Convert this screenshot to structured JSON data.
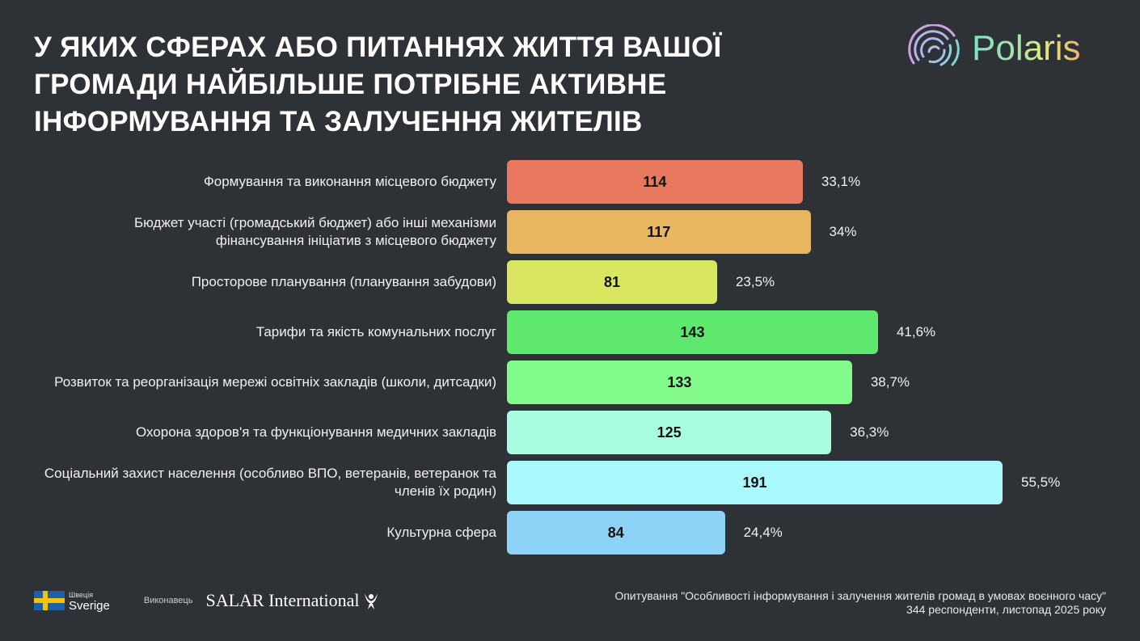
{
  "chart_data": {
    "type": "bar",
    "orientation": "horizontal",
    "title": "У ЯКИХ СФЕРАХ АБО ПИТАННЯХ ЖИТТЯ ВАШОЇ ГРОМАДИ НАЙБІЛЬШЕ ПОТРІБНЕ АКТИВНЕ ІНФОРМУВАННЯ ТА ЗАЛУЧЕННЯ ЖИТЕЛІВ",
    "categories": [
      "Формування та виконання місцевого бюджету",
      "Бюджет участі (громадський бюджет) або інші механізми фінансування ініціатив з місцевого бюджету",
      "Просторове планування (планування забудови)",
      "Тарифи та якість комунальних послуг",
      "Розвиток та реорганізація мережі освітніх закладів (школи, дитсадки)",
      "Охорона здоров'я та функціонування медичних закладів",
      "Соціальний захист населення (особливо ВПО, ветеранів, ветеранок та членів їх родин)",
      "Культурна сфера"
    ],
    "values": [
      114,
      117,
      81,
      143,
      133,
      125,
      191,
      84
    ],
    "percent_labels": [
      "33,1%",
      "34%",
      "23,5%",
      "41,6%",
      "38,7%",
      "36,3%",
      "55,5%",
      "24,4%"
    ],
    "colors": [
      "#e8795e",
      "#e8b660",
      "#d9e660",
      "#5ee86e",
      "#82fb8a",
      "#a8fce0",
      "#a8f8fc",
      "#8dd3f8"
    ],
    "grid": false,
    "legend": "none"
  },
  "brand": {
    "name": "Polaris"
  },
  "footer": {
    "sweden_small": "Швеція",
    "sweden": "Sverige",
    "executor_label": "Виконавець",
    "salar": "SALAR International",
    "source_line1": "Опитування \"Особливості інформування і залучення жителів громад в умовах воєнного часу\"",
    "source_line2": "344 респонденти, листопад 2025 року"
  }
}
